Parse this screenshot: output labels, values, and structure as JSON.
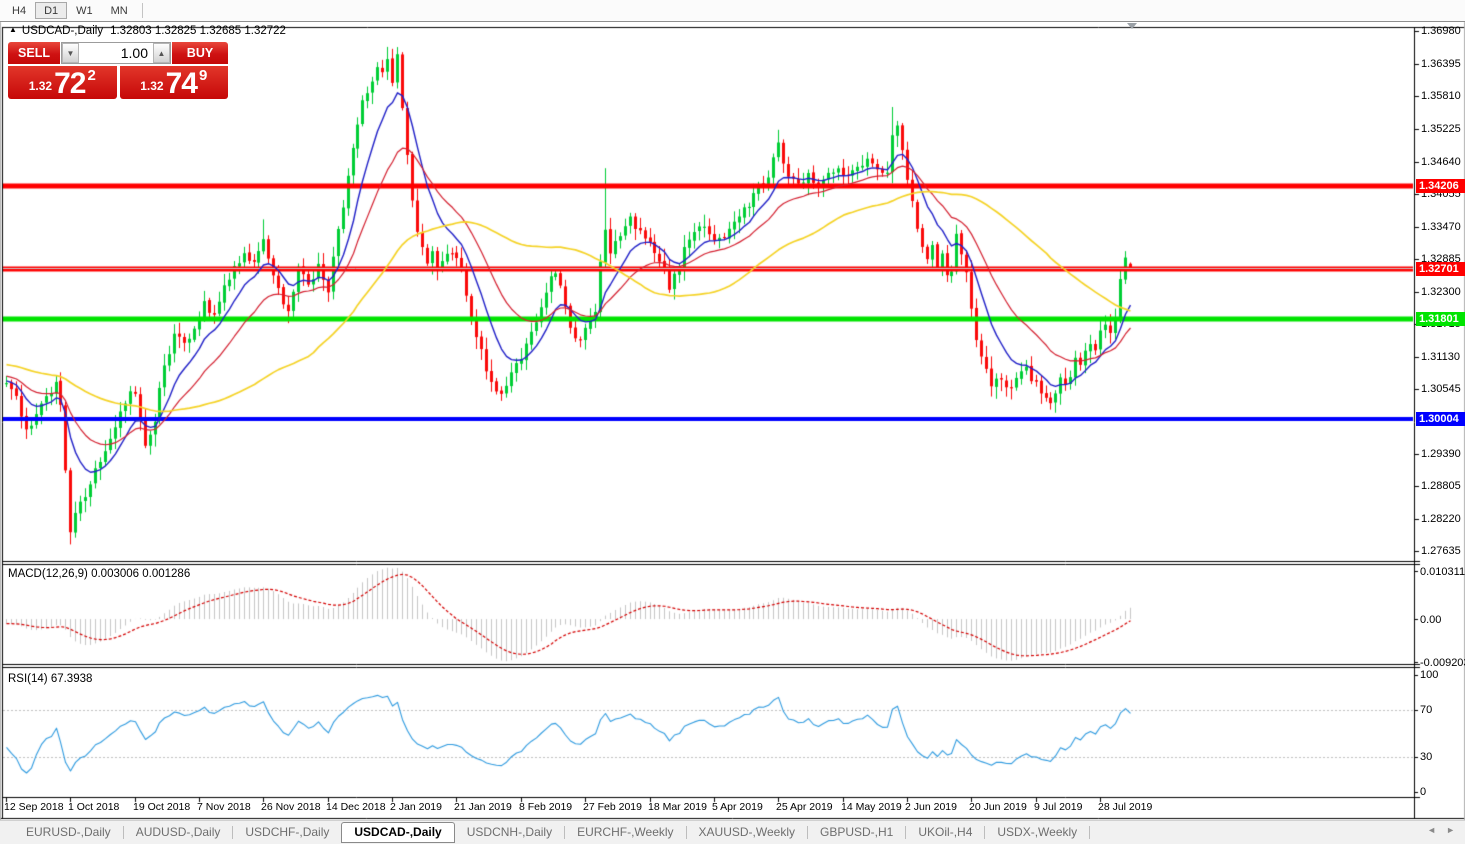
{
  "toolbar": {
    "timeframes": [
      {
        "label": "H4",
        "active": false
      },
      {
        "label": "D1",
        "active": true
      },
      {
        "label": "W1",
        "active": false
      },
      {
        "label": "MN",
        "active": false
      }
    ]
  },
  "chart": {
    "symbol_header": {
      "arrow": "▲",
      "symbol": "USDCAD-,Daily",
      "ohlc": "1.32803 1.32825 1.32685 1.32722"
    },
    "trade_panel": {
      "sell_label": "SELL",
      "buy_label": "BUY",
      "volume": "1.00",
      "spinner_down": "▼",
      "spinner_up": "▲",
      "sell_quote": {
        "prefix": "1.32",
        "big": "72",
        "sup": "2"
      },
      "buy_quote": {
        "prefix": "1.32",
        "big": "74",
        "sup": "9"
      }
    }
  },
  "panels": {
    "macd": {
      "label": "MACD(12,26,9) 0.003006 0.001286",
      "axis": [
        {
          "label": "0.010311",
          "value": 0.010311
        },
        {
          "label": "0.00",
          "value": 0
        },
        {
          "label": "-0.009203",
          "value": -0.009203
        }
      ]
    },
    "rsi": {
      "label": "RSI(14) 67.3938",
      "axis": [
        {
          "label": "100",
          "value": 100
        },
        {
          "label": "70",
          "value": 70
        },
        {
          "label": "30",
          "value": 30
        },
        {
          "label": "0",
          "value": 0
        }
      ]
    }
  },
  "price_axis": {
    "ticks": [
      "1.36980",
      "1.36395",
      "1.35810",
      "1.35225",
      "1.34640",
      "1.34055",
      "1.33470",
      "1.32885",
      "1.32300",
      "1.31715",
      "1.31130",
      "1.30545",
      "1.29390",
      "1.28805",
      "1.28220",
      "1.27635"
    ]
  },
  "time_axis": {
    "labels": [
      {
        "text": "12 Sep 2018",
        "bar": 0
      },
      {
        "text": "1 Oct 2018",
        "bar": 13
      },
      {
        "text": "19 Oct 2018",
        "bar": 26
      },
      {
        "text": "7 Nov 2018",
        "bar": 39
      },
      {
        "text": "26 Nov 2018",
        "bar": 52
      },
      {
        "text": "14 Dec 2018",
        "bar": 65
      },
      {
        "text": "2 Jan 2019",
        "bar": 78
      },
      {
        "text": "21 Jan 2019",
        "bar": 91
      },
      {
        "text": "8 Feb 2019",
        "bar": 104
      },
      {
        "text": "27 Feb 2019",
        "bar": 117
      },
      {
        "text": "18 Mar 2019",
        "bar": 130
      },
      {
        "text": "5 Apr 2019",
        "bar": 143
      },
      {
        "text": "25 Apr 2019",
        "bar": 156
      },
      {
        "text": "14 May 2019",
        "bar": 169
      },
      {
        "text": "2 Jun 2019",
        "bar": 182
      },
      {
        "text": "20 Jun 2019",
        "bar": 195
      },
      {
        "text": "9 Jul 2019",
        "bar": 208
      },
      {
        "text": "28 Jul 2019",
        "bar": 221
      }
    ]
  },
  "tabs": {
    "items": [
      {
        "label": "EURUSD-,Daily",
        "active": false
      },
      {
        "label": "AUDUSD-,Daily",
        "active": false
      },
      {
        "label": "USDCHF-,Daily",
        "active": false
      },
      {
        "label": "USDCAD-,Daily",
        "active": true
      },
      {
        "label": "USDCNH-,Daily",
        "active": false
      },
      {
        "label": "EURCHF-,Weekly",
        "active": false
      },
      {
        "label": "XAUUSD-,Weekly",
        "active": false
      },
      {
        "label": "GBPUSD-,H1",
        "active": false
      },
      {
        "label": "UKOil-,H4",
        "active": false
      },
      {
        "label": "USDX-,Weekly",
        "active": false
      }
    ],
    "scroll_left": "◄",
    "scroll_right": "►"
  },
  "chart_data": {
    "type": "candlestick",
    "symbol": "USDCAD",
    "timeframe": "Daily",
    "bar_count": 228,
    "seed": 20190807,
    "y_range": [
      1.2746,
      1.3704
    ],
    "colors": {
      "candle_up": "#00ce35",
      "candle_down": "#fa0a0a",
      "background": "#ffffff",
      "foreground": "#000000"
    },
    "horizontal_lines": [
      {
        "value": 1.34206,
        "label": "1.34206",
        "color": "#ff0000",
        "width": 5
      },
      {
        "value": 1.32701,
        "label": "1.32701",
        "color": "#ff0000",
        "width": 5
      },
      {
        "value": 1.31801,
        "label": "1.31801",
        "color": "#00e400",
        "width": 5
      },
      {
        "value": 1.30004,
        "label": "1.30004",
        "color": "#0000ff",
        "width": 4
      }
    ],
    "bid_price": 1.32722,
    "last_candle": {
      "open": 1.32803,
      "high": 1.32825,
      "low": 1.32685,
      "close": 1.32722
    },
    "moving_averages": [
      {
        "period": 9,
        "method": "ema",
        "color": "#2020c8",
        "width": 1.4
      },
      {
        "period": 21,
        "method": "ema",
        "color": "#d42030",
        "width": 1.2
      },
      {
        "period": 50,
        "method": "sma",
        "color": "#f5d327",
        "width": 1.7
      }
    ],
    "macd": {
      "fast": 12,
      "slow": 26,
      "signal_period": 9,
      "current": 0.003006,
      "current_signal": 0.001286,
      "range": [
        -0.009203,
        0.010311
      ],
      "hist_color": "#c6c6c6",
      "signal_color": "#d40000"
    },
    "rsi": {
      "period": 14,
      "current": 67.3938,
      "range": [
        0,
        100
      ],
      "levels": [
        70,
        30
      ],
      "color": "#2f9be0"
    },
    "close_noise": 0.0018,
    "wick_noise": 0.0018,
    "price_anchors": [
      [
        0,
        1.3065
      ],
      [
        2,
        1.3042
      ],
      [
        4,
        1.2985
      ],
      [
        6,
        1.3008
      ],
      [
        8,
        1.3048
      ],
      [
        10,
        1.3062
      ],
      [
        11,
        1.302
      ],
      [
        12,
        1.29
      ],
      [
        13,
        1.279
      ],
      [
        14,
        1.2828
      ],
      [
        16,
        1.2862
      ],
      [
        18,
        1.2915
      ],
      [
        20,
        1.2948
      ],
      [
        22,
        1.298
      ],
      [
        24,
        1.3035
      ],
      [
        26,
        1.3052
      ],
      [
        27,
        1.301
      ],
      [
        28,
        1.2952
      ],
      [
        30,
        1.3005
      ],
      [
        32,
        1.3095
      ],
      [
        34,
        1.3158
      ],
      [
        36,
        1.3132
      ],
      [
        38,
        1.3168
      ],
      [
        40,
        1.3212
      ],
      [
        42,
        1.3185
      ],
      [
        44,
        1.3238
      ],
      [
        46,
        1.3272
      ],
      [
        48,
        1.3302
      ],
      [
        50,
        1.3285
      ],
      [
        52,
        1.3332
      ],
      [
        53,
        1.3292
      ],
      [
        55,
        1.3232
      ],
      [
        57,
        1.3192
      ],
      [
        59,
        1.3268
      ],
      [
        61,
        1.3248
      ],
      [
        63,
        1.3272
      ],
      [
        65,
        1.3235
      ],
      [
        66,
        1.3292
      ],
      [
        68,
        1.3388
      ],
      [
        70,
        1.3482
      ],
      [
        72,
        1.3578
      ],
      [
        74,
        1.3602
      ],
      [
        75,
        1.3638
      ],
      [
        76,
        1.3622
      ],
      [
        77,
        1.3652
      ],
      [
        78,
        1.3602
      ],
      [
        79,
        1.3648
      ],
      [
        80,
        1.356
      ],
      [
        81,
        1.3468
      ],
      [
        82,
        1.3392
      ],
      [
        83,
        1.3342
      ],
      [
        84,
        1.3302
      ],
      [
        85,
        1.3282
      ],
      [
        86,
        1.3295
      ],
      [
        87,
        1.3268
      ],
      [
        88,
        1.3282
      ],
      [
        90,
        1.3302
      ],
      [
        92,
        1.3268
      ],
      [
        94,
        1.3182
      ],
      [
        96,
        1.3122
      ],
      [
        98,
        1.3062
      ],
      [
        100,
        1.3042
      ],
      [
        102,
        1.3078
      ],
      [
        104,
        1.3112
      ],
      [
        106,
        1.3158
      ],
      [
        108,
        1.3205
      ],
      [
        110,
        1.3252
      ],
      [
        111,
        1.3268
      ],
      [
        112,
        1.3242
      ],
      [
        114,
        1.3162
      ],
      [
        116,
        1.3142
      ],
      [
        118,
        1.3172
      ],
      [
        119,
        1.3185
      ],
      [
        120,
        1.3292
      ],
      [
        121,
        1.3335
      ],
      [
        122,
        1.3302
      ],
      [
        124,
        1.3332
      ],
      [
        126,
        1.3362
      ],
      [
        128,
        1.3332
      ],
      [
        130,
        1.3318
      ],
      [
        132,
        1.3292
      ],
      [
        134,
        1.3242
      ],
      [
        136,
        1.3272
      ],
      [
        138,
        1.3332
      ],
      [
        140,
        1.3355
      ],
      [
        142,
        1.3335
      ],
      [
        144,
        1.3322
      ],
      [
        146,
        1.3338
      ],
      [
        148,
        1.3362
      ],
      [
        150,
        1.3385
      ],
      [
        152,
        1.3422
      ],
      [
        154,
        1.3438
      ],
      [
        156,
        1.3492
      ],
      [
        157,
        1.3462
      ],
      [
        158,
        1.3445
      ],
      [
        160,
        1.3428
      ],
      [
        162,
        1.3442
      ],
      [
        164,
        1.3422
      ],
      [
        166,
        1.3438
      ],
      [
        168,
        1.3445
      ],
      [
        170,
        1.3432
      ],
      [
        172,
        1.3448
      ],
      [
        174,
        1.3462
      ],
      [
        176,
        1.3442
      ],
      [
        178,
        1.3452
      ],
      [
        179,
        1.3505
      ],
      [
        180,
        1.3522
      ],
      [
        181,
        1.3478
      ],
      [
        182,
        1.3432
      ],
      [
        183,
        1.3385
      ],
      [
        184,
        1.3352
      ],
      [
        185,
        1.3312
      ],
      [
        186,
        1.3285
      ],
      [
        187,
        1.3305
      ],
      [
        188,
        1.3272
      ],
      [
        189,
        1.3292
      ],
      [
        190,
        1.3262
      ],
      [
        191,
        1.3258
      ],
      [
        192,
        1.3338
      ],
      [
        193,
        1.3302
      ],
      [
        194,
        1.3262
      ],
      [
        195,
        1.3205
      ],
      [
        196,
        1.3152
      ],
      [
        197,
        1.3112
      ],
      [
        198,
        1.3088
      ],
      [
        199,
        1.3062
      ],
      [
        200,
        1.3082
      ],
      [
        202,
        1.3052
      ],
      [
        204,
        1.3072
      ],
      [
        206,
        1.3092
      ],
      [
        208,
        1.3062
      ],
      [
        210,
        1.3042
      ],
      [
        211,
        1.3022
      ],
      [
        212,
        1.3048
      ],
      [
        213,
        1.3072
      ],
      [
        214,
        1.3058
      ],
      [
        215,
        1.3082
      ],
      [
        216,
        1.3108
      ],
      [
        217,
        1.3092
      ],
      [
        218,
        1.3118
      ],
      [
        219,
        1.3142
      ],
      [
        220,
        1.3122
      ],
      [
        221,
        1.3152
      ],
      [
        222,
        1.3168
      ],
      [
        223,
        1.3148
      ],
      [
        224,
        1.3182
      ],
      [
        225,
        1.3245
      ],
      [
        226,
        1.3283
      ],
      [
        227,
        1.32722
      ]
    ],
    "special_wicks": [
      {
        "bar": 13,
        "low": 1.2776
      },
      {
        "bar": 52,
        "high": 1.336
      },
      {
        "bar": 77,
        "high": 1.367
      },
      {
        "bar": 121,
        "high": 1.3452
      },
      {
        "bar": 156,
        "high": 1.3521
      },
      {
        "bar": 179,
        "high": 1.3562
      }
    ]
  }
}
